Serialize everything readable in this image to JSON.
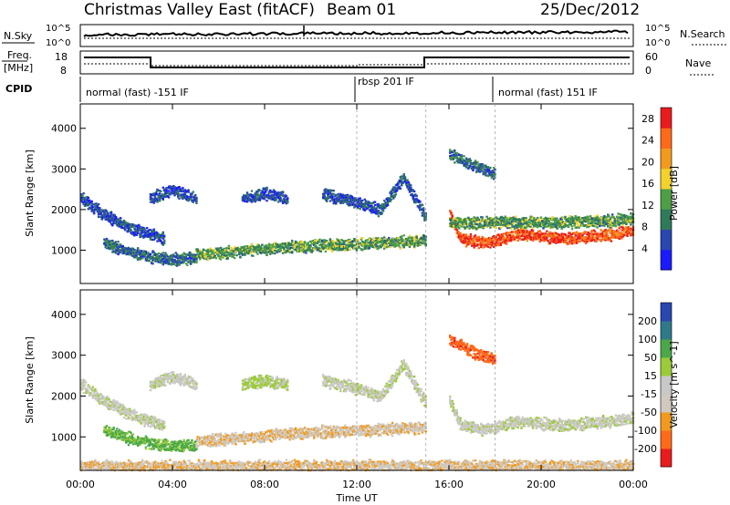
{
  "header": {
    "station": "Christmas Valley East (fitACF)",
    "beam": "Beam 01",
    "date": "25/Dec/2012"
  },
  "status_panels": {
    "nsky": {
      "label": "N.Sky",
      "left_ticks": [
        "10^5",
        "10^0"
      ]
    },
    "nsearch": {
      "label": "N.Search",
      "right_ticks": [
        "10^5",
        "10^0"
      ]
    },
    "freq": {
      "label_line1": "Freq.",
      "label_line2": "[MHz]",
      "left_ticks": [
        "18",
        "8"
      ]
    },
    "nave": {
      "label": "Nave",
      "right_ticks": [
        "60",
        "0"
      ]
    },
    "cpid": {
      "label": "CPID",
      "segments": [
        "normal (fast) -151 IF",
        "rbsp 201 IF",
        "normal (fast) 151 IF"
      ]
    }
  },
  "x_axis": {
    "label": "Time UT",
    "ticks": [
      "00:00",
      "04:00",
      "08:00",
      "12:00",
      "16:00",
      "20:00",
      "00:00"
    ]
  },
  "colorbars": {
    "power": {
      "label": "Power [dB]",
      "colors": [
        "#1a1aff",
        "#2a46b0",
        "#2f7a5a",
        "#4e9e46",
        "#f2d22b",
        "#f29a1e",
        "#ff6a1a",
        "#e81c1c"
      ]
    },
    "velocity": {
      "label": "Velocity [m s^-1]",
      "colors": [
        "#e81c1c",
        "#ff6a1a",
        "#f29a1e",
        "#cfc9bf",
        "#c8c8c8",
        "#9ccb3a",
        "#4aa84a",
        "#2f7a8a",
        "#2a46b0"
      ]
    }
  },
  "chart_data": [
    {
      "type": "heatmap",
      "name": "power",
      "xlabel": "Time UT",
      "ylabel": "Slant Range [km]",
      "x_ticks": [
        "00:00",
        "04:00",
        "08:00",
        "12:00",
        "16:00",
        "20:00",
        "00:00"
      ],
      "xlim_hours": [
        0,
        24
      ],
      "y_ticks": [
        1000,
        2000,
        3000,
        4000
      ],
      "ylim": [
        180,
        4600
      ],
      "colorbar_label": "Power [dB]",
      "colorbar_ticks": [
        4,
        8,
        12,
        16,
        20,
        24,
        28
      ],
      "colorbar_range": [
        0,
        30
      ],
      "echo_bands": [
        {
          "t": [
            0.0,
            1.0,
            2.0,
            3.0,
            3.6
          ],
          "range_km": [
            2300,
            1900,
            1600,
            1400,
            1300
          ],
          "db": 6
        },
        {
          "t": [
            1.0,
            2.0,
            3.0,
            4.0,
            5.0
          ],
          "range_km": [
            1200,
            1000,
            850,
            800,
            820
          ],
          "db": 8
        },
        {
          "t": [
            5.0,
            7.0,
            9.0,
            11.0,
            13.0,
            15.0
          ],
          "range_km": [
            900,
            1000,
            1100,
            1150,
            1200,
            1250
          ],
          "db": 12
        },
        {
          "t": [
            3.0,
            4.0,
            5.0
          ],
          "range_km": [
            2300,
            2500,
            2300
          ],
          "db": 6
        },
        {
          "t": [
            7.0,
            8.0,
            9.0
          ],
          "range_km": [
            2300,
            2400,
            2300
          ],
          "db": 6
        },
        {
          "t": [
            10.5,
            12.0,
            13.0,
            14.0,
            15.0
          ],
          "range_km": [
            2400,
            2200,
            2000,
            2800,
            1800
          ],
          "db": 6
        },
        {
          "t": [
            16.0,
            16.5,
            17.5,
            19.0,
            21.0,
            23.0,
            24.0
          ],
          "range_km": [
            1900,
            1300,
            1200,
            1400,
            1300,
            1400,
            1500
          ],
          "db": 26
        },
        {
          "t": [
            16.0,
            17.5,
            19.0,
            21.0,
            23.0,
            24.0
          ],
          "range_km": [
            1700,
            1700,
            1700,
            1700,
            1750,
            1800
          ],
          "db": 12
        },
        {
          "t": [
            16.0,
            17.0,
            18.0
          ],
          "range_km": [
            3400,
            3100,
            2900
          ],
          "db": 8
        }
      ]
    },
    {
      "type": "heatmap",
      "name": "velocity",
      "xlabel": "Time UT",
      "ylabel": "Slant Range [km]",
      "x_ticks": [
        "00:00",
        "04:00",
        "08:00",
        "12:00",
        "16:00",
        "20:00",
        "00:00"
      ],
      "xlim_hours": [
        0,
        24
      ],
      "y_ticks": [
        1000,
        2000,
        3000,
        4000
      ],
      "ylim": [
        180,
        4600
      ],
      "colorbar_label": "Velocity [m s^-1]",
      "colorbar_ticks": [
        -200,
        -100,
        -50,
        -15,
        15,
        50,
        100,
        200
      ],
      "colorbar_range": [
        -250,
        250
      ],
      "echo_bands": [
        {
          "t": [
            0.0,
            1.0,
            2.0,
            3.0,
            3.6
          ],
          "range_km": [
            2300,
            1900,
            1600,
            1400,
            1300
          ],
          "vel": 0
        },
        {
          "t": [
            1.0,
            2.0,
            3.0,
            4.0,
            5.0
          ],
          "range_km": [
            1200,
            1000,
            850,
            800,
            820
          ],
          "vel": 60
        },
        {
          "t": [
            5.0,
            7.0,
            9.0,
            11.0,
            13.0,
            15.0
          ],
          "range_km": [
            900,
            1000,
            1100,
            1150,
            1200,
            1250
          ],
          "vel": -40
        },
        {
          "t": [
            3.0,
            4.0,
            5.0
          ],
          "range_km": [
            2300,
            2500,
            2300
          ],
          "vel": 0
        },
        {
          "t": [
            7.0,
            8.0,
            9.0
          ],
          "range_km": [
            2300,
            2400,
            2300
          ],
          "vel": 20
        },
        {
          "t": [
            10.5,
            12.0,
            13.0,
            14.0,
            15.0
          ],
          "range_km": [
            2400,
            2200,
            2000,
            2800,
            1800
          ],
          "vel": 0
        },
        {
          "t": [
            16.0,
            16.5,
            17.5,
            19.0,
            21.0,
            23.0,
            24.0
          ],
          "range_km": [
            1900,
            1300,
            1200,
            1400,
            1300,
            1400,
            1500
          ],
          "vel": 0
        },
        {
          "t": [
            16.0,
            17.0,
            18.0
          ],
          "range_km": [
            3400,
            3100,
            2900
          ],
          "vel": -180
        },
        {
          "t": [
            0.0,
            6.0,
            12.0,
            18.0,
            24.0
          ],
          "range_km": [
            300,
            300,
            300,
            300,
            300
          ],
          "vel": -40
        }
      ]
    }
  ]
}
